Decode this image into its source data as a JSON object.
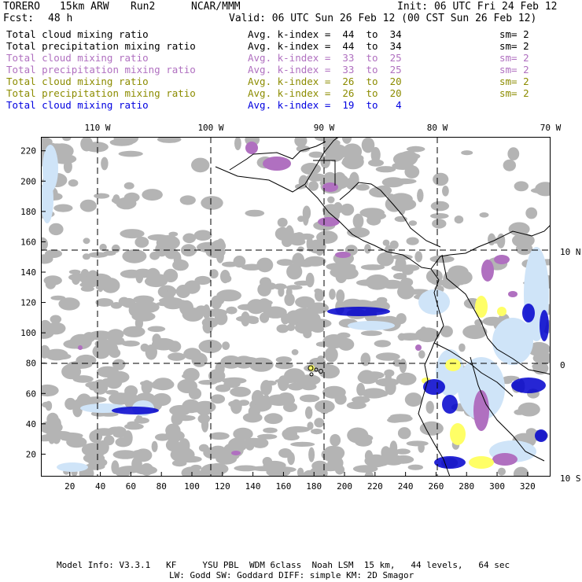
{
  "header": {
    "model": "TORERO",
    "resolution": "15km ARW",
    "run": "Run2",
    "org": "NCAR/MMM",
    "init": "Init: 06 UTC Fri 24 Feb 12",
    "fcst_label": "Fcst:",
    "fcst_value": "48 h",
    "valid": "Valid: 06 UTC Sun 26 Feb 12 (00 CST Sun 26 Feb 12)"
  },
  "legend": [
    {
      "name": "Total cloud mixing ratio",
      "kindex": "Avg. k-index =  44  to  34",
      "sm": "sm= 2",
      "color": "#000000"
    },
    {
      "name": "Total precipitation mixing ratio",
      "kindex": "Avg. k-index =  44  to  34",
      "sm": "sm= 2",
      "color": "#000000"
    },
    {
      "name": "Total cloud mixing ratio",
      "kindex": "Avg. k-index =  33  to  25",
      "sm": "sm= 2",
      "color": "#b070c0"
    },
    {
      "name": "Total precipitation mixing ratio",
      "kindex": "Avg. k-index =  33  to  25",
      "sm": "sm= 2",
      "color": "#b070c0"
    },
    {
      "name": "Total cloud mixing ratio",
      "kindex": "Avg. k-index =  26  to  20",
      "sm": "sm= 2",
      "color": "#8c8c00"
    },
    {
      "name": "Total precipitation mixing ratio",
      "kindex": "Avg. k-index =  26  to  20",
      "sm": "sm= 2",
      "color": "#8c8c00"
    },
    {
      "name": "Total cloud mixing ratio",
      "kindex": "Avg. k-index =  19  to   4",
      "sm": "",
      "color": "#0000e0"
    }
  ],
  "map": {
    "lon_labels": [
      "110 W",
      "100 W",
      "90 W",
      "80 W",
      "70 W"
    ],
    "lat_labels": [
      "10 N",
      "0",
      "10 S"
    ],
    "x_ticks": [
      "20",
      "40",
      "60",
      "80",
      "100",
      "120",
      "140",
      "160",
      "180",
      "200",
      "220",
      "240",
      "260",
      "280",
      "300",
      "320"
    ],
    "y_ticks": [
      "20",
      "40",
      "60",
      "80",
      "100",
      "120",
      "140",
      "160",
      "180",
      "200",
      "220"
    ],
    "colors": {
      "gray_cloud": "#b4b4b4",
      "purple": "#b070c0",
      "yellow": "#ffff66",
      "light_blue": "#cfe4f8",
      "blue": "#0000cc"
    }
  },
  "footer": {
    "line1": "Model Info: V3.3.1   KF     YSU PBL  WDM 6class  Noah LSM  15 km,   44 levels,   64 sec",
    "line2": "LW: Godd SW: Goddard DIFF: simple KM: 2D Smagor"
  }
}
